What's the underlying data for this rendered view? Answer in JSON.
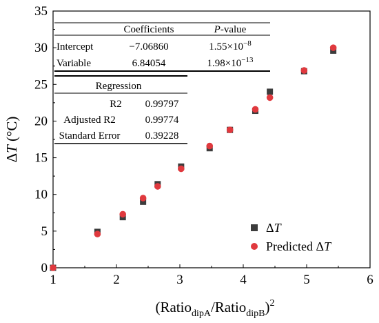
{
  "chart_data": {
    "type": "scatter",
    "xlabel": {
      "base": "(Ratio",
      "sub1": "dipA",
      "mid": "/Ratio",
      "sub2": "dipB",
      "end": ")",
      "sup": "2"
    },
    "ylabel": {
      "delta": "Δ",
      "var": "T",
      "unit": " (°C)"
    },
    "xlim": [
      1,
      6
    ],
    "ylim": [
      0,
      35
    ],
    "x_ticks": [
      1,
      2,
      3,
      4,
      5,
      6
    ],
    "y_ticks": [
      0,
      5,
      10,
      15,
      20,
      25,
      30,
      35
    ],
    "grid": false,
    "legend_position": "bottom-right",
    "series": [
      {
        "name": "ΔT",
        "name_parts": {
          "delta": "Δ",
          "var": "T"
        },
        "marker": "square",
        "color": "#3c3c3c",
        "x": [
          1.0,
          1.7,
          2.1,
          2.42,
          2.65,
          3.02,
          3.47,
          3.79,
          4.19,
          4.42,
          4.96,
          5.42
        ],
        "y": [
          0.0,
          4.9,
          6.9,
          9.0,
          11.4,
          13.8,
          16.3,
          18.8,
          21.4,
          24.0,
          26.8,
          29.6
        ]
      },
      {
        "name": "Predicted ΔT",
        "name_parts": {
          "prefix": "Predicted ",
          "delta": "Δ",
          "var": "T"
        },
        "marker": "circle",
        "color": "#e0393e",
        "x": [
          1.0,
          1.7,
          2.1,
          2.42,
          2.65,
          3.02,
          3.47,
          3.79,
          4.19,
          4.42,
          4.96,
          5.42
        ],
        "y": [
          0.0,
          4.6,
          7.3,
          9.5,
          11.1,
          13.5,
          16.6,
          18.8,
          21.6,
          23.2,
          26.9,
          30.0
        ]
      }
    ],
    "coefficients_table": {
      "headers": [
        "",
        "Coefficients",
        "P-value"
      ],
      "pvalue_header": {
        "italic": "P",
        "rest": "-value"
      },
      "rows": [
        {
          "label": "Intercept",
          "coef": "−7.06860",
          "p_base": "1.55×10",
          "p_exp": "−8"
        },
        {
          "label": "Variable",
          "coef": "6.84054",
          "p_base": "1.98×10",
          "p_exp": "−13"
        }
      ]
    },
    "regression_table": {
      "title": "Regression",
      "rows": [
        {
          "label": "R2",
          "value": "0.99797"
        },
        {
          "label": "Adjusted R2",
          "value": "0.99774"
        },
        {
          "label": "Standard Error",
          "value": "0.39228"
        }
      ]
    }
  }
}
